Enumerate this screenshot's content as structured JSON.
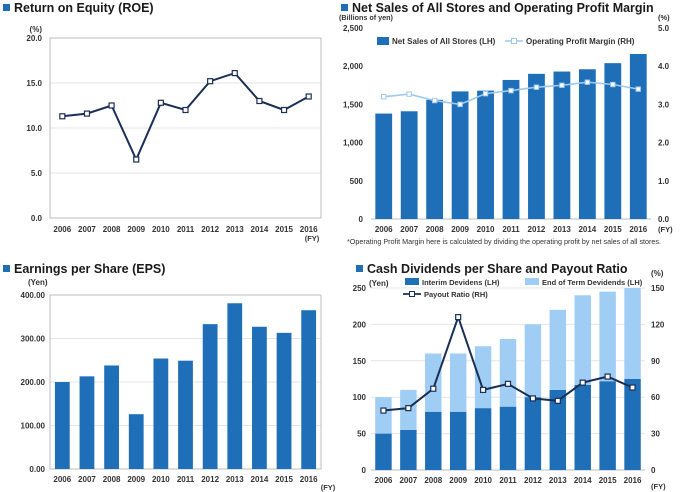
{
  "chart_data": [
    {
      "id": "roe",
      "type": "line",
      "title": "Return on Equity (ROE)",
      "unit": "(%)",
      "xunit": "(FY)",
      "categories": [
        "2006",
        "2007",
        "2008",
        "2009",
        "2010",
        "2011",
        "2012",
        "2013",
        "2014",
        "2015",
        "2016"
      ],
      "ylim": [
        0,
        20
      ],
      "yticks": [
        "0.0",
        "5.0",
        "10.0",
        "15.0",
        "20.0"
      ],
      "series": [
        {
          "values": [
            11.3,
            11.6,
            12.5,
            6.5,
            12.8,
            12.0,
            15.2,
            16.1,
            13.0,
            12.0,
            13.5
          ]
        }
      ],
      "grid": true
    },
    {
      "id": "sales",
      "type": "bar",
      "title": "Net Sales of All Stores and Operating Profit Margin",
      "left_unit": "(Billions of yen)",
      "right_unit": "(%)",
      "xunit": "(FY)",
      "categories": [
        "2006",
        "2007",
        "2008",
        "2009",
        "2010",
        "2011",
        "2012",
        "2013",
        "2014",
        "2015",
        "2016"
      ],
      "ylim": [
        0,
        2500
      ],
      "yticks": [
        "0",
        "500",
        "1,000",
        "1,500",
        "2,000",
        "2,500"
      ],
      "y2lim": [
        0,
        5
      ],
      "y2ticks": [
        "0.0",
        "1.0",
        "2.0",
        "3.0",
        "4.0",
        "5.0"
      ],
      "series": [
        {
          "name": "Net Sales of All Stores  (LH)",
          "axis": "left",
          "kind": "bar",
          "color": "#1f6fb8",
          "values": [
            1380,
            1410,
            1560,
            1670,
            1680,
            1820,
            1900,
            1930,
            1960,
            2040,
            2160
          ]
        },
        {
          "name": "Operating Profit Margin (RH)",
          "axis": "right",
          "kind": "line",
          "color": "#9ec9ec",
          "values": [
            3.2,
            3.27,
            3.1,
            3.0,
            3.28,
            3.36,
            3.45,
            3.5,
            3.58,
            3.52,
            3.4
          ]
        }
      ],
      "legend": "top",
      "note": "*Operating Profit Margin here is calculated by dividing the operating profit by net sales of all stores."
    },
    {
      "id": "eps",
      "type": "bar",
      "title": "Earnings per Share (EPS)",
      "unit": "(Yen)",
      "xunit": "(FY)",
      "categories": [
        "2006",
        "2007",
        "2008",
        "2009",
        "2010",
        "2011",
        "2012",
        "2013",
        "2014",
        "2015",
        "2016"
      ],
      "ylim": [
        0,
        400
      ],
      "yticks": [
        "0.00",
        "100.00",
        "200.00",
        "300.00",
        "400.00"
      ],
      "series": [
        {
          "color": "#1f6fb8",
          "values": [
            200,
            213,
            238,
            126,
            254,
            249,
            333,
            381,
            327,
            313,
            365
          ]
        }
      ],
      "grid": true
    },
    {
      "id": "dividends",
      "type": "bar",
      "title": "Cash Dividends per Share and Payout Ratio",
      "left_unit": "(Yen)",
      "right_unit": "(%)",
      "xunit": "(FY)",
      "categories": [
        "2006",
        "2007",
        "2008",
        "2009",
        "2010",
        "2011",
        "2012",
        "2013",
        "2014",
        "2015",
        "2016"
      ],
      "ylim": [
        0,
        250
      ],
      "yticks": [
        "0",
        "50",
        "100",
        "150",
        "200",
        "250"
      ],
      "y2lim": [
        0,
        150
      ],
      "y2ticks": [
        "0",
        "30",
        "60",
        "90",
        "120",
        "150"
      ],
      "series": [
        {
          "name": "Interim Devidens (LH)",
          "axis": "left",
          "kind": "bar",
          "color": "#1f6fb8",
          "values": [
            50,
            55,
            80,
            80,
            85,
            87,
            100,
            110,
            117,
            122,
            125
          ]
        },
        {
          "name": "End of Term Devidends (LH)",
          "axis": "left",
          "kind": "bar",
          "color": "#9fcdf3",
          "values": [
            50,
            55,
            80,
            80,
            85,
            93,
            100,
            110,
            123,
            123,
            125
          ]
        },
        {
          "name": "Payout Ratio (RH)",
          "axis": "right",
          "kind": "line",
          "color": "#1a2f55",
          "values": [
            49,
            51,
            67,
            126,
            66,
            71,
            59,
            57,
            72,
            77,
            68
          ]
        }
      ],
      "legend": "top"
    }
  ]
}
